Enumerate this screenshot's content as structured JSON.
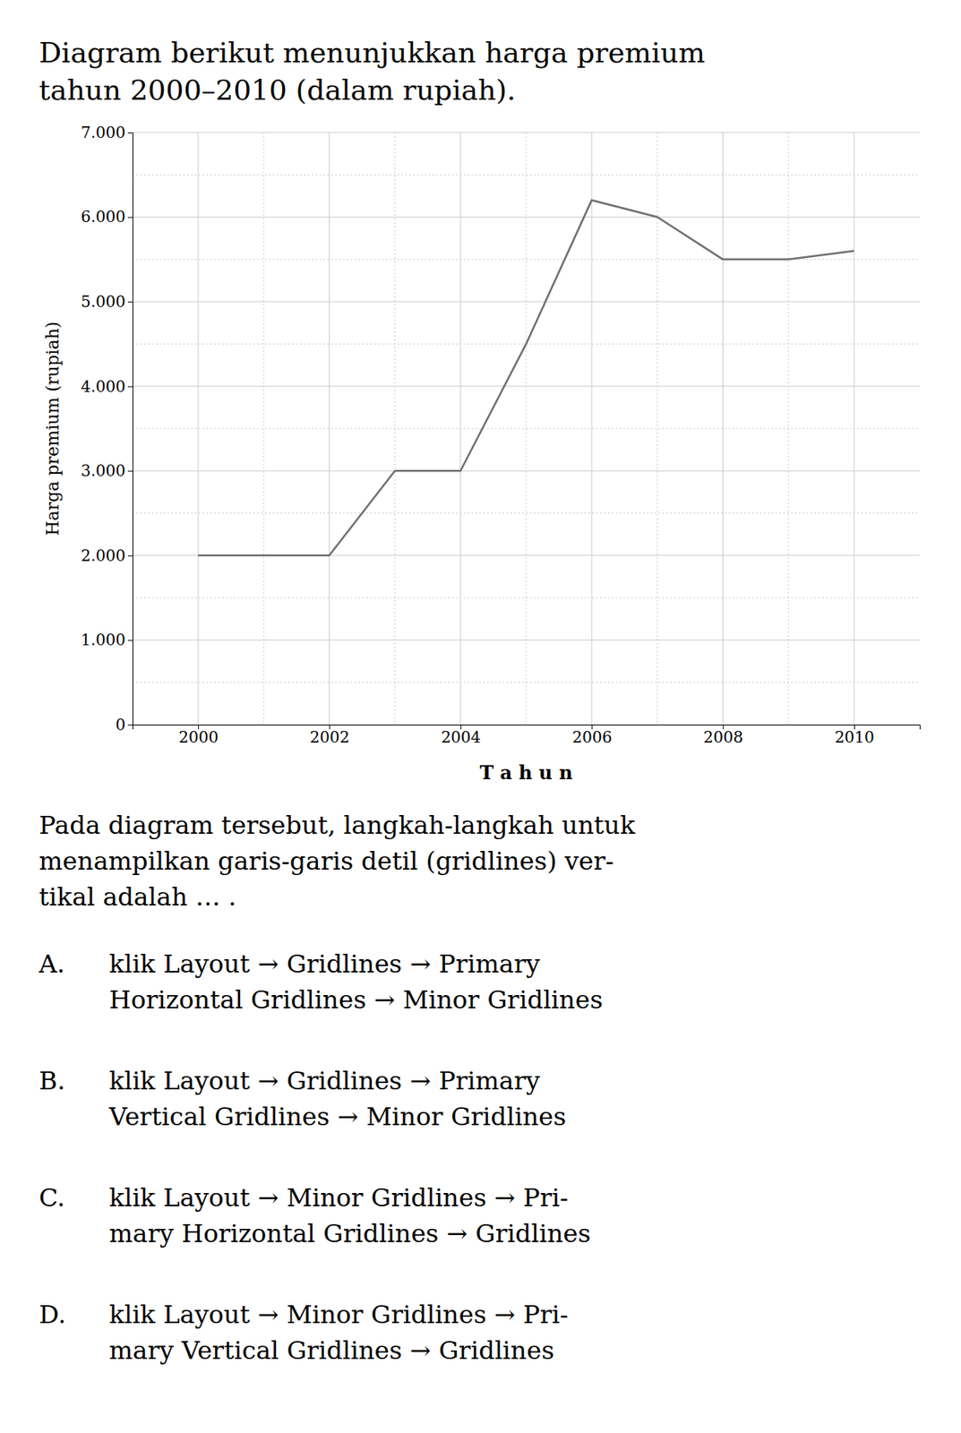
{
  "chart_data": {
    "type": "line",
    "title": [
      "Diagram berikut menunjukkan harga premium",
      "tahun 2000–2010 (dalam rupiah)."
    ],
    "x_label": "T a h u n",
    "y_label": "Harga premium (rupiah)",
    "x": [
      2000,
      2001,
      2002,
      2003,
      2004,
      2005,
      2006,
      2007,
      2008,
      2009,
      2010
    ],
    "values": [
      2000,
      2000,
      2000,
      3000,
      3000,
      4500,
      6200,
      6000,
      5500,
      5500,
      5600
    ],
    "color": "#707070",
    "xlim": [
      1999,
      2011
    ],
    "ylim": [
      0,
      7000
    ],
    "xticks": [
      2000,
      2002,
      2004,
      2006,
      2008,
      2010
    ],
    "yticks": [
      0,
      {
        "value": 1000,
        "label": "1.000"
      },
      {
        "value": 2000,
        "label": "2.000"
      },
      {
        "value": 3000,
        "label": "3.000"
      },
      {
        "value": 4000,
        "label": "4.000"
      },
      {
        "value": 5000,
        "label": "5.000"
      },
      {
        "value": 6000,
        "label": "6.000"
      },
      {
        "value": 7000,
        "label": "7.000"
      }
    ],
    "minor_xticks": [
      2001,
      2003,
      2005,
      2007,
      2009
    ],
    "minor_yticks": [
      500,
      1500,
      2500,
      3500,
      4500,
      5500,
      6500
    ],
    "grid": true,
    "annotations": [
      {
        "text": [
          "Pada diagram tersebut, langkah-langkah untuk",
          "menampilkan garis-garis detil (gridlines) ver-",
          "tikal adalah … ."
        ]
      },
      {
        "label": "A.",
        "text": [
          "klik Layout → Gridlines → Primary",
          "Horizontal Gridlines → Minor Gridlines"
        ]
      },
      {
        "label": "B.",
        "text": [
          "klik Layout → Gridlines → Primary",
          "Vertical Gridlines → Minor Gridlines"
        ]
      },
      {
        "label": "C.",
        "text": [
          "klik Layout → Minor Gridlines → Pri-",
          "mary Horizontal Gridlines → Gridlines"
        ]
      },
      {
        "label": "D.",
        "text": [
          "klik Layout → Minor Gridlines → Pri-",
          "mary Vertical Gridlines → Gridlines"
        ]
      }
    ]
  }
}
